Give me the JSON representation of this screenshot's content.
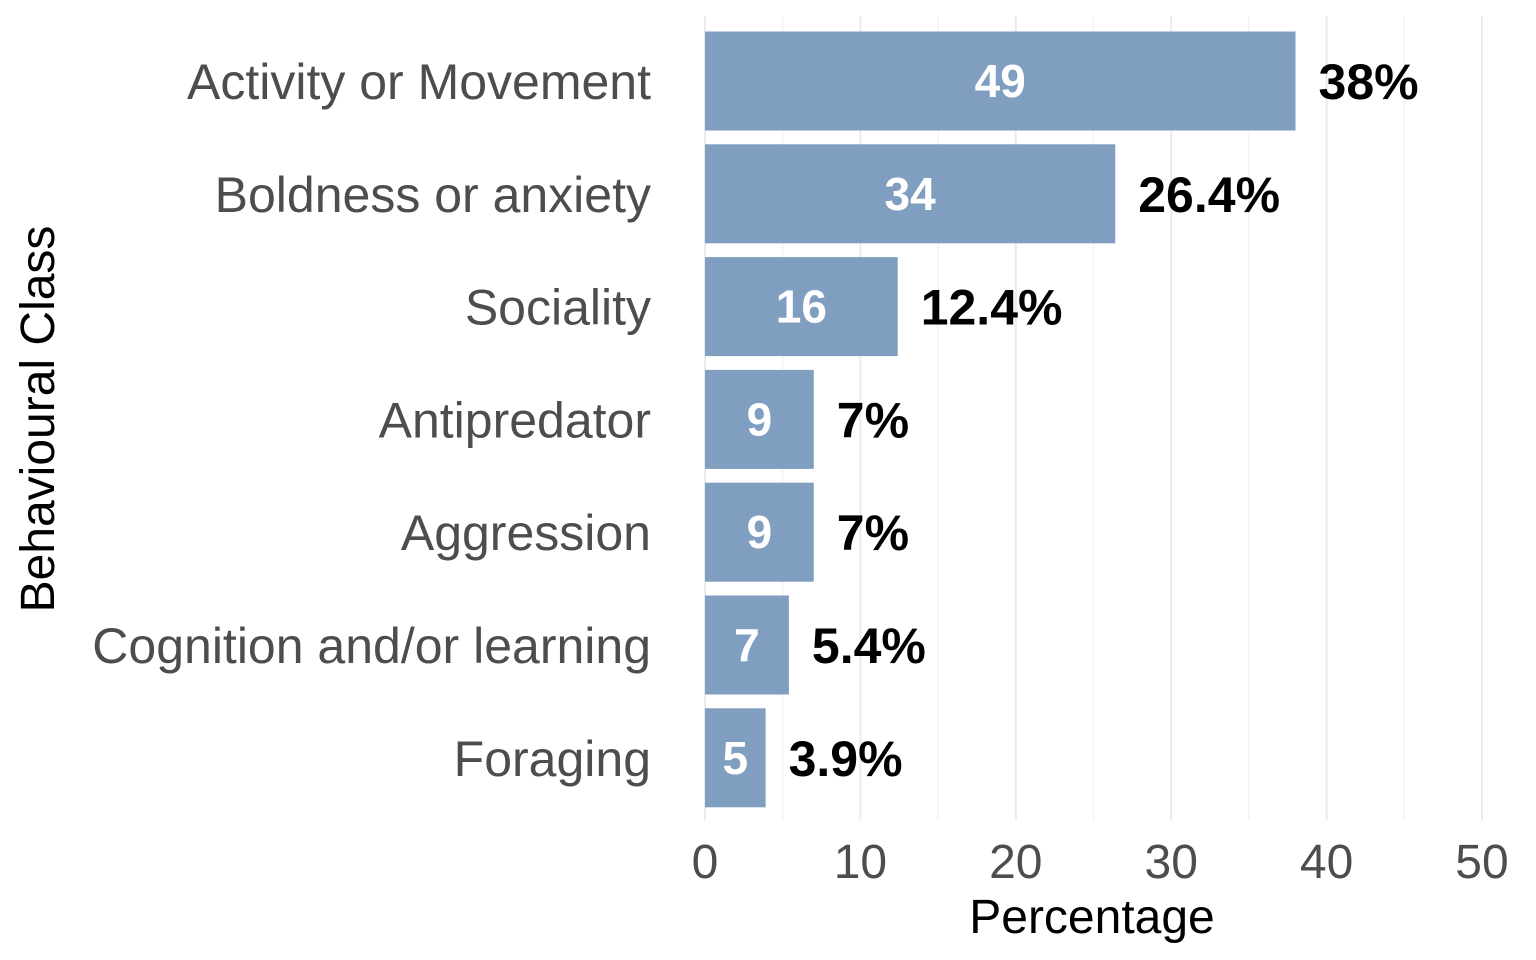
{
  "chart_data": {
    "type": "bar",
    "orientation": "horizontal",
    "categories": [
      "Activity or Movement",
      "Boldness or anxiety",
      "Sociality",
      "Antipredator",
      "Aggression",
      "Cognition and/or learning",
      "Foraging"
    ],
    "values": [
      38,
      26.4,
      12.4,
      7,
      7,
      5.4,
      3.9
    ],
    "counts": [
      49,
      34,
      16,
      9,
      9,
      7,
      5
    ],
    "value_labels": [
      "38%",
      "26.4%",
      "12.4%",
      "7%",
      "7%",
      "5.4%",
      "3.9%"
    ],
    "count_labels": [
      "49",
      "34",
      "16",
      "9",
      "9",
      "7",
      "5"
    ],
    "xlabel": "Percentage",
    "ylabel": "Behavioural Class",
    "xlim": [
      0,
      50
    ],
    "xticks": [
      0,
      10,
      20,
      30,
      40,
      50
    ],
    "xtick_labels": [
      "0",
      "10",
      "20",
      "30",
      "40",
      "50"
    ],
    "grid": "vertical",
    "legend": "none",
    "colors": {
      "bar": "#7f9ec0",
      "count_label": "#ffffff",
      "value_label": "#000000",
      "category_label": "#4d4d4d",
      "tick_label": "#4d4d4d",
      "grid": "#ebebeb"
    }
  }
}
